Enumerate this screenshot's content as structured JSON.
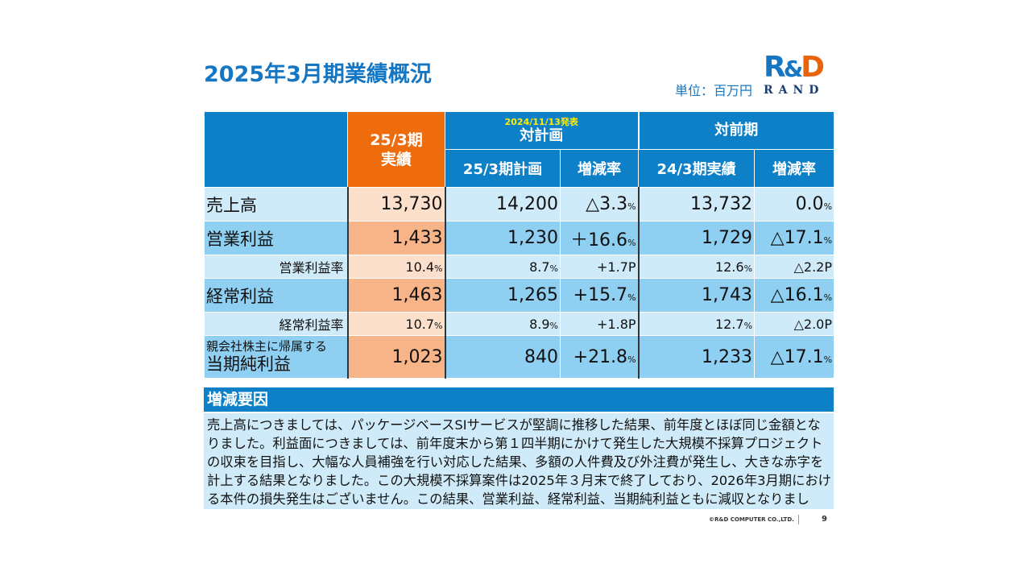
{
  "title": "2025年3月期業績概況",
  "unit": "単位：百万円",
  "logo": {
    "mark_r": "R",
    "mark_amp": "&",
    "mark_d": "D",
    "sub": "RAND",
    "colors": {
      "blue": "#1577c4",
      "orange": "#e8650c"
    }
  },
  "table": {
    "header": {
      "actual": "25/3期\n実績",
      "actual_l1": "25/3期",
      "actual_l2": "実績",
      "plan_note": "2024/11/13発表",
      "plan_group": "対計画",
      "prev_group": "対前期",
      "plan_col": "25/3期計画",
      "plan_rate": "増減率",
      "prev_col": "24/3期実績",
      "prev_rate": "増減率"
    },
    "rows": [
      {
        "label": "売上高",
        "actual": "13,730",
        "plan": "14,200",
        "plan_rate": "△3.3",
        "plan_rate_unit": "%",
        "prev": "13,732",
        "prev_rate": "0.0",
        "prev_rate_unit": "%"
      },
      {
        "label": "営業利益",
        "actual": "1,433",
        "plan": "1,230",
        "plan_rate": "＋16.6",
        "plan_rate_unit": "%",
        "prev": "1,729",
        "prev_rate": "△17.1",
        "prev_rate_unit": "%"
      },
      {
        "label": "営業利益率",
        "actual": "10.4",
        "actual_unit": "%",
        "plan": "8.7",
        "plan_unit": "%",
        "plan_rate": "+1.7P",
        "prev": "12.6",
        "prev_unit": "%",
        "prev_rate": "△2.2P"
      },
      {
        "label": "経常利益",
        "actual": "1,463",
        "plan": "1,265",
        "plan_rate": "+15.7",
        "plan_rate_unit": "%",
        "prev": "1,743",
        "prev_rate": "△16.1",
        "prev_rate_unit": "%"
      },
      {
        "label": "経常利益率",
        "actual": "10.7",
        "actual_unit": "%",
        "plan": "8.9",
        "plan_unit": "%",
        "plan_rate": "+1.8P",
        "prev": "12.7",
        "prev_unit": "%",
        "prev_rate": "△2.0P"
      },
      {
        "label_l1": "親会社株主に帰属する",
        "label_l2": "当期純利益",
        "actual": "1,023",
        "plan": "840",
        "plan_rate": "+21.8",
        "plan_rate_unit": "%",
        "prev": "1,233",
        "prev_rate": "△17.1",
        "prev_rate_unit": "%"
      }
    ]
  },
  "reason": {
    "heading": "増減要因",
    "body": "売上高につきましては、パッケージベースSIサービスが堅調に推移した結果、前年度とほぼ同じ金額となりました。利益面につきましては、前年度末から第１四半期にかけて発生した大規模不採算プロジェクトの収束を目指し、大幅な人員補強を行い対応した結果、多額の人件費及び外注費が発生し、大きな赤字を計上する結果となりました。この大規模不採算案件は2025年３月末で終了しており、2026年3月期における本件の損失発生はございません。この結果、営業利益、経常利益、当期純利益ともに減収となりました。"
  },
  "footer": {
    "copyright": "©R&D COMPUTER CO.,LTD.",
    "page": "9"
  }
}
